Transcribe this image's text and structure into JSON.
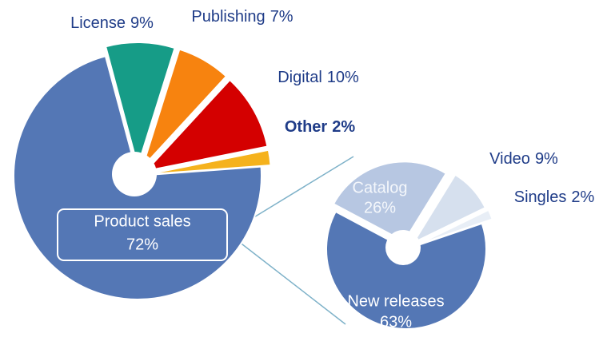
{
  "chart_data": [
    {
      "type": "pie",
      "categories": [
        "License",
        "Publishing",
        "Digital",
        "Other",
        "Product sales"
      ],
      "values": [
        9,
        7,
        10,
        2,
        72
      ],
      "value_labels": [
        "9%",
        "7%",
        "10%",
        "2%",
        "72%"
      ],
      "colors": [
        "#169c87",
        "#f7830f",
        "#d40000",
        "#f5b21d",
        "#5477b5"
      ]
    },
    {
      "type": "pie",
      "categories": [
        "Catalog",
        "Video",
        "Singles",
        "New releases"
      ],
      "values": [
        26,
        9,
        2,
        63
      ],
      "value_labels": [
        "26%",
        "9%",
        "2%",
        "63%"
      ],
      "colors": [
        "#b7c7e2",
        "#d6e0ee",
        "#e8eef6",
        "#5477b5"
      ]
    }
  ]
}
